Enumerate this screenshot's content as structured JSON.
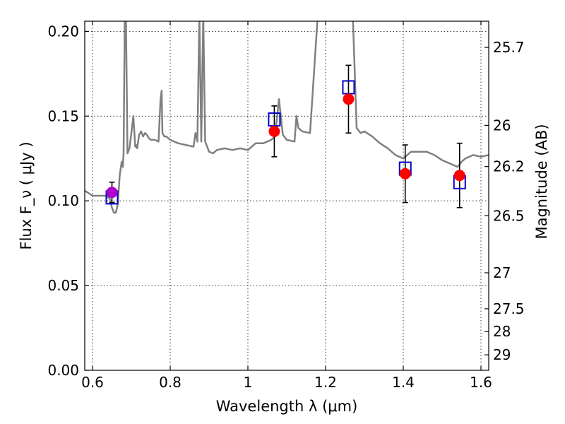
{
  "chart_data": {
    "type": "scatter",
    "title": "",
    "xlabel": "Wavelength  λ (μm)",
    "ylabel": "Flux  F_ν  ( μJy )",
    "y2label": "Magnitude (AB)",
    "xlim": [
      0.58,
      1.62
    ],
    "ylim": [
      0.0,
      0.206
    ],
    "grid": true,
    "x_ticks": [
      0.6,
      0.8,
      1.0,
      1.2,
      1.4,
      1.6
    ],
    "x_tick_labels": [
      "0.6",
      "0.8",
      "1",
      "1.2",
      "1.4",
      "1.6"
    ],
    "y_ticks": [
      0.0,
      0.05,
      0.1,
      0.15,
      0.2
    ],
    "y_tick_labels": [
      "0.00",
      "0.05",
      "0.10",
      "0.15",
      "0.20"
    ],
    "y2_ticks": [
      25.7,
      26.0,
      26.2,
      26.5,
      27.0,
      27.5,
      28.0,
      29.0
    ],
    "y2_tick_labels": [
      "25.7",
      "26",
      "26.2",
      "26.5",
      "27",
      "27.5",
      "28",
      "29"
    ],
    "series": [
      {
        "type": "line",
        "color": "#808080",
        "x": [
          0.58,
          0.6,
          0.62,
          0.635,
          0.645,
          0.65,
          0.655,
          0.66,
          0.665,
          0.67,
          0.675,
          0.678,
          0.68,
          0.683,
          0.686,
          0.69,
          0.695,
          0.7,
          0.705,
          0.71,
          0.712,
          0.715,
          0.72,
          0.725,
          0.73,
          0.735,
          0.74,
          0.745,
          0.75,
          0.76,
          0.77,
          0.775,
          0.778,
          0.78,
          0.785,
          0.79,
          0.8,
          0.82,
          0.84,
          0.86,
          0.865,
          0.87,
          0.875,
          0.88,
          0.885,
          0.89,
          0.895,
          0.9,
          0.91,
          0.92,
          0.94,
          0.96,
          0.98,
          1.0,
          1.02,
          1.04,
          1.06,
          1.07,
          1.08,
          1.09,
          1.1,
          1.12,
          1.125,
          1.13,
          1.14,
          1.16,
          1.18,
          1.2,
          1.22,
          1.24,
          1.25,
          1.26,
          1.27,
          1.28,
          1.29,
          1.3,
          1.32,
          1.34,
          1.36,
          1.38,
          1.4,
          1.42,
          1.44,
          1.46,
          1.48,
          1.5,
          1.52,
          1.54,
          1.55,
          1.56,
          1.58,
          1.6,
          1.62
        ],
        "y": [
          0.106,
          0.103,
          0.103,
          0.103,
          0.101,
          0.096,
          0.093,
          0.093,
          0.098,
          0.115,
          0.123,
          0.12,
          0.128,
          0.21,
          0.21,
          0.128,
          0.131,
          0.14,
          0.15,
          0.132,
          0.133,
          0.131,
          0.139,
          0.141,
          0.138,
          0.14,
          0.139,
          0.137,
          0.136,
          0.136,
          0.135,
          0.16,
          0.165,
          0.14,
          0.138,
          0.138,
          0.136,
          0.134,
          0.133,
          0.132,
          0.14,
          0.135,
          0.21,
          0.135,
          0.21,
          0.135,
          0.132,
          0.129,
          0.128,
          0.13,
          0.131,
          0.13,
          0.131,
          0.13,
          0.134,
          0.134,
          0.136,
          0.138,
          0.16,
          0.139,
          0.136,
          0.135,
          0.15,
          0.143,
          0.141,
          0.14,
          0.21,
          0.21,
          0.21,
          0.21,
          0.21,
          0.21,
          0.21,
          0.143,
          0.14,
          0.141,
          0.138,
          0.134,
          0.131,
          0.127,
          0.125,
          0.129,
          0.129,
          0.129,
          0.127,
          0.124,
          0.122,
          0.12,
          0.123,
          0.125,
          0.127,
          0.126,
          0.127
        ]
      },
      {
        "name": "",
        "type": "scatter",
        "marker": "circle",
        "color": "#ff0000",
        "x": [
          0.65,
          1.068,
          1.259,
          1.405,
          1.545
        ],
        "y": [
          0.105,
          0.141,
          0.16,
          0.116,
          0.115
        ],
        "yerr": [
          0.006,
          0.015,
          0.02,
          0.017,
          0.019
        ]
      },
      {
        "name": "",
        "type": "scatter",
        "marker": "open-square",
        "color": "#0000cc",
        "x": [
          0.65,
          1.068,
          1.259,
          1.405,
          1.545
        ],
        "y": [
          0.102,
          0.148,
          0.167,
          0.119,
          0.111
        ]
      }
    ]
  }
}
